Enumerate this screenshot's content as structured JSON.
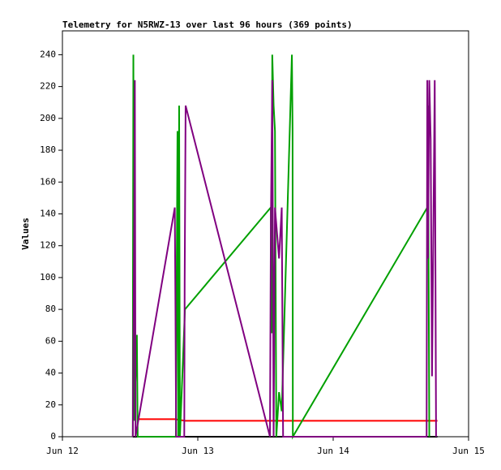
{
  "chart_data": {
    "type": "line",
    "title": "Telemetry for N5RWZ-13 over last 96 hours (369 points)",
    "y_label": "Values",
    "xlim": [
      0,
      3
    ],
    "xticks": [
      {
        "value": 0,
        "label": "Jun 12"
      },
      {
        "value": 1,
        "label": "Jun 13"
      },
      {
        "value": 2,
        "label": "Jun 14"
      },
      {
        "value": 3,
        "label": "Jun 15"
      }
    ],
    "ylim": [
      0,
      255
    ],
    "yticks": [
      0,
      20,
      40,
      60,
      80,
      100,
      120,
      140,
      160,
      180,
      200,
      220,
      240
    ],
    "series": [
      {
        "color": "#000000",
        "x": [
          0.52,
          2.77
        ],
        "values": [
          0,
          0
        ]
      },
      {
        "color": "#ff0000",
        "x": [
          0.557,
          0.83,
          0.906,
          2.77
        ],
        "values": [
          11,
          11,
          10,
          10
        ]
      },
      {
        "color": "#00a000",
        "x": [
          0.52,
          0.521,
          0.524,
          0.53,
          0.55,
          0.556,
          0.838,
          0.845,
          0.85,
          0.856,
          0.862,
          0.868,
          0.905,
          1.539,
          1.545,
          1.55,
          1.56,
          1.57,
          1.58,
          1.6,
          1.62,
          1.695,
          1.7,
          1.702,
          2.695,
          2.7,
          2.71
        ],
        "values": [
          0,
          97,
          240,
          10,
          64,
          0,
          0,
          112,
          192,
          0,
          208,
          0,
          80,
          144,
          65,
          240,
          208,
          192,
          0,
          28,
          16,
          240,
          192,
          0,
          144,
          208,
          0
        ]
      },
      {
        "color": "#800080",
        "x": [
          0.52,
          0.53,
          0.535,
          0.54,
          0.83,
          0.835,
          0.84,
          0.9,
          0.903,
          0.91,
          1.533,
          1.54,
          1.55,
          1.56,
          1.57,
          1.6,
          1.62,
          1.63,
          2.69,
          2.695,
          2.7,
          2.71,
          2.72,
          2.73,
          2.75,
          2.76
        ],
        "values": [
          0,
          128,
          224,
          0,
          144,
          80,
          0,
          0,
          97,
          208,
          0,
          136,
          224,
          0,
          144,
          112,
          144,
          0,
          0,
          224,
          112,
          224,
          187,
          38,
          224,
          0
        ]
      }
    ]
  }
}
